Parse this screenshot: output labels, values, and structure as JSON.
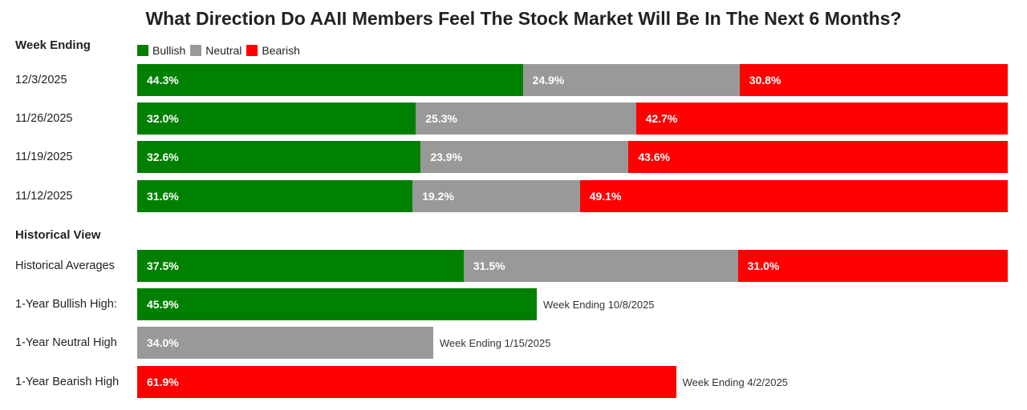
{
  "chart_data": {
    "type": "bar",
    "subtype": "stacked-horizontal-100",
    "title": "What Direction Do AAII Members Feel The Stock Market Will Be In The Next 6 Months?",
    "legend": [
      {
        "name": "Bullish",
        "color": "#008000"
      },
      {
        "name": "Neutral",
        "color": "#999999"
      },
      {
        "name": "Bearish",
        "color": "#ff0000"
      }
    ],
    "weekly": {
      "heading": "Week Ending",
      "rows": [
        {
          "label": "12/3/2025",
          "values": [
            44.3,
            24.9,
            30.8
          ],
          "labels": [
            "44.3%",
            "24.9%",
            "30.8%"
          ]
        },
        {
          "label": "11/26/2025",
          "values": [
            32.0,
            25.3,
            42.7
          ],
          "labels": [
            "32.0%",
            "25.3%",
            "42.7%"
          ]
        },
        {
          "label": "11/19/2025",
          "values": [
            32.6,
            23.9,
            43.6
          ],
          "labels": [
            "32.6%",
            "23.9%",
            "43.6%"
          ]
        },
        {
          "label": "11/12/2025",
          "values": [
            31.6,
            19.2,
            49.1
          ],
          "labels": [
            "31.6%",
            "19.2%",
            "49.1%"
          ]
        }
      ]
    },
    "historical": {
      "heading": "Historical View",
      "averages": {
        "label": "Historical Averages",
        "values": [
          37.5,
          31.5,
          31.0
        ],
        "labels": [
          "37.5%",
          "31.5%",
          "31.0%"
        ]
      },
      "highs": [
        {
          "label": "1-Year Bullish High:",
          "series": 0,
          "value": 45.9,
          "value_label": "45.9%",
          "note": "Week Ending 10/8/2025"
        },
        {
          "label": "1-Year Neutral High",
          "series": 1,
          "value": 34.0,
          "value_label": "34.0%",
          "note": "Week Ending 1/15/2025"
        },
        {
          "label": "1-Year Bearish High",
          "series": 2,
          "value": 61.9,
          "value_label": "61.9%",
          "note": "Week Ending 4/2/2025"
        }
      ]
    },
    "xlim": [
      0,
      100
    ]
  }
}
